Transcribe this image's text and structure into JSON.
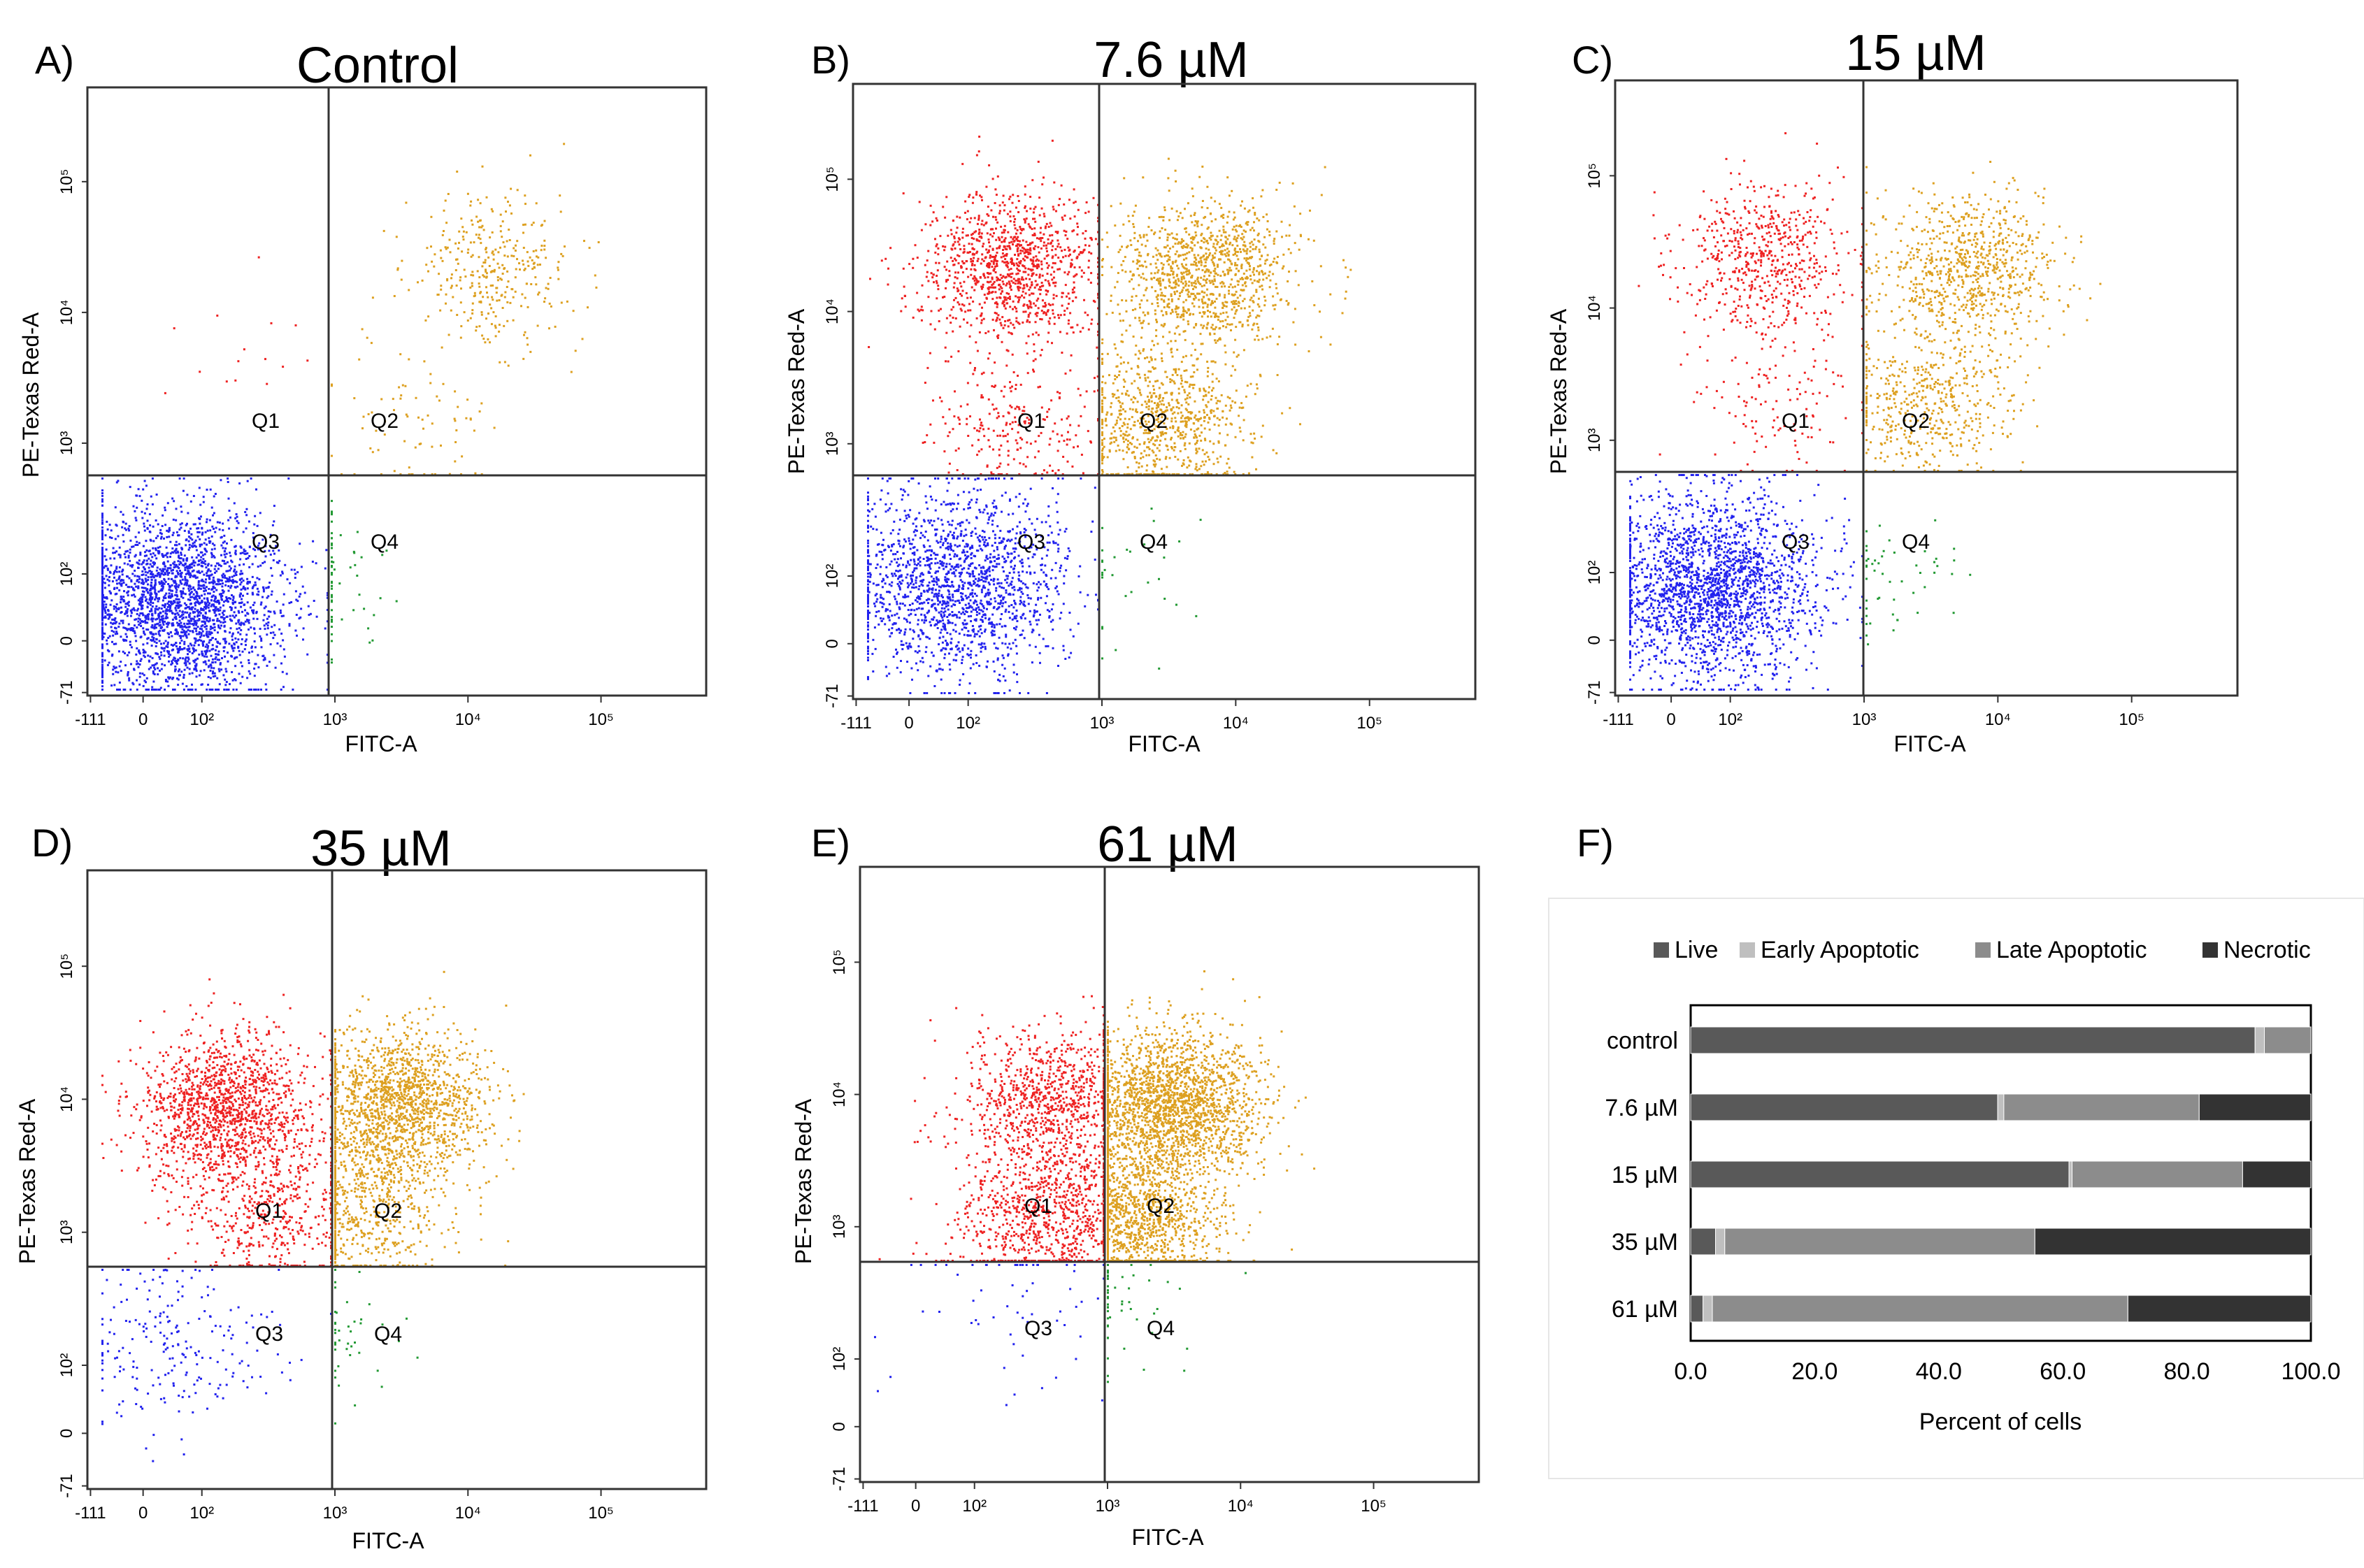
{
  "colors": {
    "q1": "#ee2222",
    "q2": "#dda020",
    "q3": "#2222ee",
    "q4": "#229933",
    "live": "#595959",
    "early": "#bfbfbf",
    "late": "#8c8c8c",
    "necrotic": "#333333"
  },
  "chart_data": [
    {
      "type": "scatter",
      "panel": "A)",
      "title": "Control",
      "xlabel": "FITC-A",
      "ylabel": "PE-Texas Red-A",
      "xticks": [
        "-111",
        "0",
        "10²",
        "10³",
        "10⁴",
        "10⁵"
      ],
      "yticks": [
        "-71",
        "0",
        "10²",
        "10³",
        "10⁴",
        "10⁵"
      ],
      "quadrant_labels": [
        "Q1",
        "Q2",
        "Q3",
        "Q4"
      ],
      "populations": [
        {
          "quadrant": "Q3",
          "x": 60,
          "y": 60,
          "count": 2600
        },
        {
          "quadrant": "Q2",
          "x": 15000,
          "y": 22000,
          "count": 350
        },
        {
          "quadrant": "Q2",
          "x": 4000,
          "y": 1500,
          "count": 80
        },
        {
          "quadrant": "Q1",
          "x": 200,
          "y": 5000,
          "count": 15
        },
        {
          "quadrant": "Q4",
          "x": 900,
          "y": 100,
          "count": 60
        }
      ]
    },
    {
      "type": "scatter",
      "panel": "B)",
      "title": "7.6 µM",
      "xlabel": "FITC-A",
      "ylabel": "PE-Texas Red-A",
      "xticks": [
        "-111",
        "0",
        "10²",
        "10³",
        "10⁴",
        "10⁵"
      ],
      "yticks": [
        "-71",
        "0",
        "10²",
        "10³",
        "10⁴",
        "10⁵"
      ],
      "quadrant_labels": [
        "Q1",
        "Q2",
        "Q3",
        "Q4"
      ],
      "populations": [
        {
          "quadrant": "Q3",
          "x": 80,
          "y": 90,
          "count": 1700
        },
        {
          "quadrant": "Q1",
          "x": 200,
          "y": 22000,
          "count": 1100
        },
        {
          "quadrant": "Q2",
          "x": 6000,
          "y": 20000,
          "count": 1100
        },
        {
          "quadrant": "Q2",
          "x": 3000,
          "y": 1500,
          "count": 800
        },
        {
          "quadrant": "Q1",
          "x": 200,
          "y": 1500,
          "count": 250
        },
        {
          "quadrant": "Q4",
          "x": 1500,
          "y": 100,
          "count": 30
        }
      ]
    },
    {
      "type": "scatter",
      "panel": "C)",
      "title": "15 µM",
      "xlabel": "FITC-A",
      "ylabel": "PE-Texas Red-A",
      "xticks": [
        "-111",
        "0",
        "10²",
        "10³",
        "10⁴",
        "10⁵"
      ],
      "yticks": [
        "-71",
        "0",
        "10²",
        "10³",
        "10⁴",
        "10⁵"
      ],
      "quadrant_labels": [
        "Q1",
        "Q2",
        "Q3",
        "Q4"
      ],
      "populations": [
        {
          "quadrant": "Q3",
          "x": 70,
          "y": 80,
          "count": 2200
        },
        {
          "quadrant": "Q1",
          "x": 180,
          "y": 24000,
          "count": 600
        },
        {
          "quadrant": "Q2",
          "x": 6000,
          "y": 20000,
          "count": 800
        },
        {
          "quadrant": "Q2",
          "x": 3000,
          "y": 2000,
          "count": 500
        },
        {
          "quadrant": "Q1",
          "x": 200,
          "y": 2000,
          "count": 120
        },
        {
          "quadrant": "Q4",
          "x": 1500,
          "y": 100,
          "count": 50
        }
      ]
    },
    {
      "type": "scatter",
      "panel": "D)",
      "title": "35 µM",
      "xlabel": "FITC-A",
      "ylabel": "PE-Texas Red-A",
      "xticks": [
        "-111",
        "0",
        "10²",
        "10³",
        "10⁴",
        "10⁵"
      ],
      "yticks": [
        "-71",
        "0",
        "10²",
        "10³",
        "10⁴",
        "10⁵"
      ],
      "quadrant_labels": [
        "Q1",
        "Q2",
        "Q3",
        "Q4"
      ],
      "populations": [
        {
          "quadrant": "Q1",
          "x": 150,
          "y": 9000,
          "count": 1400
        },
        {
          "quadrant": "Q2",
          "x": 3000,
          "y": 9000,
          "count": 1600
        },
        {
          "quadrant": "Q2",
          "x": 1500,
          "y": 1500,
          "count": 600
        },
        {
          "quadrant": "Q1",
          "x": 300,
          "y": 1500,
          "count": 500
        },
        {
          "quadrant": "Q3",
          "x": 40,
          "y": 150,
          "count": 220
        },
        {
          "quadrant": "Q4",
          "x": 1000,
          "y": 200,
          "count": 40
        }
      ]
    },
    {
      "type": "scatter",
      "panel": "E)",
      "title": "61 µM",
      "xlabel": "FITC-A",
      "ylabel": "PE-Texas Red-A",
      "xticks": [
        "-111",
        "0",
        "10²",
        "10³",
        "10⁴",
        "10⁵"
      ],
      "yticks": [
        "-71",
        "0",
        "10²",
        "10³",
        "10⁴",
        "10⁵"
      ],
      "quadrant_labels": [
        "Q1",
        "Q2",
        "Q3",
        "Q4"
      ],
      "populations": [
        {
          "quadrant": "Q1",
          "x": 350,
          "y": 9000,
          "count": 900
        },
        {
          "quadrant": "Q2",
          "x": 3000,
          "y": 9000,
          "count": 2000
        },
        {
          "quadrant": "Q2",
          "x": 1500,
          "y": 1200,
          "count": 1400
        },
        {
          "quadrant": "Q1",
          "x": 350,
          "y": 1200,
          "count": 900
        },
        {
          "quadrant": "Q3",
          "x": 200,
          "y": 300,
          "count": 60
        },
        {
          "quadrant": "Q4",
          "x": 1200,
          "y": 250,
          "count": 50
        }
      ]
    },
    {
      "type": "bar",
      "orientation": "horizontal",
      "stacked": true,
      "panel": "F)",
      "categories": [
        "control",
        "7.6 µM",
        "15 µM",
        "35 µM",
        "61 µM"
      ],
      "series": [
        {
          "name": "Live",
          "values": [
            91,
            49.5,
            61,
            4,
            2
          ]
        },
        {
          "name": "Early Apoptotic",
          "values": [
            1.5,
            1,
            0.5,
            1.5,
            1.5
          ]
        },
        {
          "name": "Late Apoptotic",
          "values": [
            7.5,
            31.5,
            27.5,
            50,
            67
          ]
        },
        {
          "name": "Necrotic",
          "values": [
            0,
            18,
            11,
            44.5,
            29.5
          ]
        }
      ],
      "xlabel": "Percent of cells",
      "xlim": [
        0,
        100
      ],
      "xticks": [
        "0.0",
        "20.0",
        "40.0",
        "60.0",
        "80.0",
        "100.0"
      ],
      "legend": "top"
    }
  ]
}
